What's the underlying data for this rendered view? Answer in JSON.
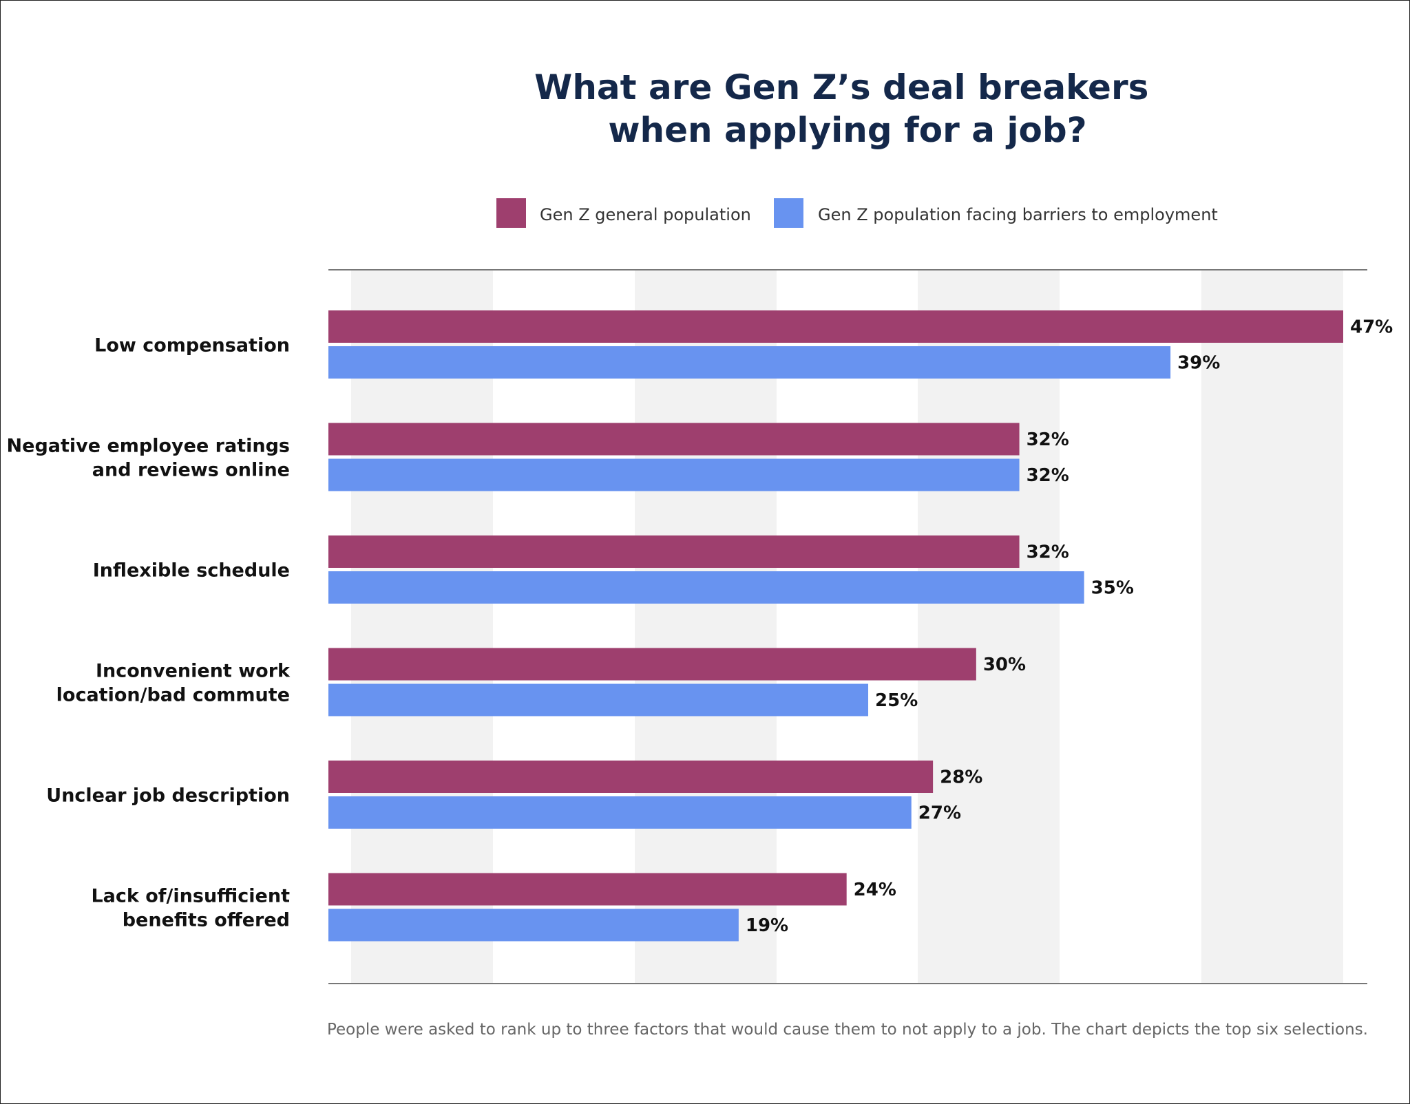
{
  "chart_data": {
    "type": "bar",
    "orientation": "horizontal",
    "title": [
      "What are Gen Z’s deal breakers",
      "when applying for a job?"
    ],
    "categories": [
      [
        "Low compensation"
      ],
      [
        "Negative employee ratings",
        "and reviews online"
      ],
      [
        "Inflexible schedule"
      ],
      [
        "Inconvenient work",
        "location/bad commute"
      ],
      [
        "Unclear job description"
      ],
      [
        "Lack of/insufficient",
        "benefits offered"
      ]
    ],
    "series": [
      {
        "name": "Gen Z general population",
        "color": "#9e3f6e",
        "values": [
          47,
          32,
          32,
          30,
          28,
          24
        ],
        "labels": [
          "47%",
          "32%",
          "32%",
          "30%",
          "28%",
          "24%"
        ]
      },
      {
        "name": "Gen Z population facing barriers to employment",
        "color": "#6893f0",
        "values": [
          39,
          32,
          35,
          25,
          27,
          19
        ],
        "labels": [
          "39%",
          "32%",
          "35%",
          "25%",
          "27%",
          "19%"
        ]
      }
    ],
    "xlim": [
      0,
      47
    ],
    "grid": "alternating vertical bands",
    "legend": "top-center",
    "note": "People were asked to rank up to three factors that would cause them to not apply to a job. The chart depicts the top six selections."
  }
}
